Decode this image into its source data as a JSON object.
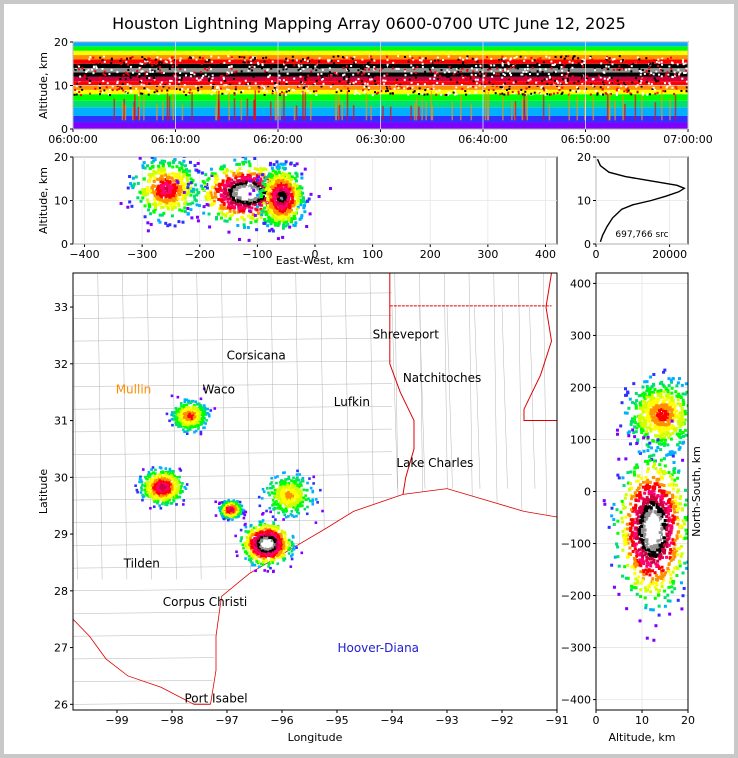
{
  "title": "Houston Lightning Mapping Array 0600-0700 UTC June 12, 2025",
  "colors": {
    "density_scale": [
      "#8000ff",
      "#3030ff",
      "#00b0ff",
      "#00e070",
      "#00ff00",
      "#d0ff00",
      "#ffff00",
      "#ff9000",
      "#ff0000",
      "#ff0070",
      "#d00040",
      "#000000",
      "#909090",
      "#ffffff"
    ],
    "state_border": "#e00000",
    "county_border": "#b4b4b4",
    "city_default": "#000000",
    "city_orange": "#ff8c00",
    "city_blue": "#2020d0"
  },
  "chart_data": [
    {
      "id": "time-height",
      "type": "heatmap",
      "xlabel": "",
      "ylabel": "Altitude, km",
      "x_ticks": [
        "06:00:00",
        "06:10:00",
        "06:20:00",
        "06:30:00",
        "06:40:00",
        "06:50:00",
        "07:00:00"
      ],
      "x_range": [
        "06:00:00",
        "07:00:00"
      ],
      "y_ticks": [
        0,
        10,
        20
      ],
      "y_range": [
        0,
        20
      ],
      "activity_core_altitude_km": [
        10,
        15
      ]
    },
    {
      "id": "east-west-altitude",
      "type": "heatmap",
      "xlabel": "East-West, km",
      "ylabel": "Altitude, km",
      "x_ticks": [
        -400,
        -300,
        -200,
        -100,
        0,
        100,
        200,
        300,
        400
      ],
      "x_range": [
        -420,
        420
      ],
      "y_ticks": [
        0,
        10,
        20
      ],
      "y_range": [
        0,
        20
      ],
      "clusters": [
        {
          "x_center": -260,
          "alt_center": 13,
          "half_width": 60,
          "intensity": 0.65
        },
        {
          "x_center": -120,
          "alt_center": 12,
          "half_width": 90,
          "intensity": 1.0
        },
        {
          "x_center": -60,
          "alt_center": 11,
          "half_width": 40,
          "intensity": 0.8
        }
      ]
    },
    {
      "id": "altitude-histogram",
      "type": "line",
      "xlabel": "",
      "ylabel": "",
      "x_ticks": [
        0,
        20000
      ],
      "x_range": [
        0,
        25000
      ],
      "y_ticks": [
        0,
        10,
        20
      ],
      "y_range": [
        0,
        20
      ],
      "annotation": "697,766 src",
      "points": [
        {
          "alt": 0.5,
          "count": 1200
        },
        {
          "alt": 2,
          "count": 1800
        },
        {
          "alt": 4,
          "count": 3000
        },
        {
          "alt": 6,
          "count": 4500
        },
        {
          "alt": 8,
          "count": 7000
        },
        {
          "alt": 9,
          "count": 10000
        },
        {
          "alt": 10,
          "count": 15000
        },
        {
          "alt": 11,
          "count": 19000
        },
        {
          "alt": 12,
          "count": 22500
        },
        {
          "alt": 12.8,
          "count": 24000
        },
        {
          "alt": 13.5,
          "count": 22000
        },
        {
          "alt": 14.5,
          "count": 15000
        },
        {
          "alt": 15.5,
          "count": 8000
        },
        {
          "alt": 16.5,
          "count": 3500
        },
        {
          "alt": 18,
          "count": 1200
        },
        {
          "alt": 19.5,
          "count": 400
        }
      ]
    },
    {
      "id": "plan-view-map",
      "type": "scatter",
      "xlabel": "Longitude",
      "ylabel": "Latitude",
      "x_ticks": [
        -99,
        -98,
        -97,
        -96,
        -95,
        -94,
        -93,
        -92,
        -91
      ],
      "x_range": [
        -99.8,
        -91
      ],
      "y_ticks": [
        26,
        27,
        28,
        29,
        30,
        31,
        32,
        33
      ],
      "y_range": [
        25.9,
        33.6
      ],
      "cities": [
        {
          "name": "Shreveport",
          "lon": -93.75,
          "lat": 32.52,
          "color": "black"
        },
        {
          "name": "Corsicana",
          "lon": -96.47,
          "lat": 32.15,
          "color": "black"
        },
        {
          "name": "Natchitoches",
          "lon": -93.09,
          "lat": 31.75,
          "color": "black"
        },
        {
          "name": "Mullin",
          "lon": -98.7,
          "lat": 31.55,
          "color": "orange"
        },
        {
          "name": "Waco",
          "lon": -97.15,
          "lat": 31.55,
          "color": "black"
        },
        {
          "name": "Lufkin",
          "lon": -94.73,
          "lat": 31.33,
          "color": "black"
        },
        {
          "name": "Lake Charles",
          "lon": -93.22,
          "lat": 30.25,
          "color": "black"
        },
        {
          "name": "Tilden",
          "lon": -98.55,
          "lat": 28.48,
          "color": "black"
        },
        {
          "name": "Corpus Christi",
          "lon": -97.4,
          "lat": 27.8,
          "color": "black"
        },
        {
          "name": "Hoover-Diana",
          "lon": -94.25,
          "lat": 26.99,
          "color": "blue"
        },
        {
          "name": "Port Isabel",
          "lon": -97.2,
          "lat": 26.1,
          "color": "black"
        }
      ],
      "clusters": [
        {
          "lon": -97.7,
          "lat": 31.1,
          "spread": 0.25,
          "intensity": 0.55
        },
        {
          "lon": -98.2,
          "lat": 29.85,
          "spread": 0.3,
          "intensity": 0.7
        },
        {
          "lon": -96.95,
          "lat": 29.45,
          "spread": 0.15,
          "intensity": 0.7
        },
        {
          "lon": -96.3,
          "lat": 28.85,
          "spread": 0.35,
          "intensity": 1.0
        },
        {
          "lon": -95.9,
          "lat": 29.7,
          "spread": 0.35,
          "intensity": 0.45
        }
      ]
    },
    {
      "id": "north-south-altitude",
      "type": "heatmap",
      "xlabel": "Altitude, km",
      "ylabel": "North-South, km",
      "x_ticks": [
        0,
        10,
        20
      ],
      "x_range": [
        0,
        20
      ],
      "y_ticks": [
        -400,
        -300,
        -200,
        -100,
        0,
        100,
        200,
        300,
        400
      ],
      "y_range": [
        -420,
        420
      ],
      "clusters": [
        {
          "ns_center": 150,
          "alt_center": 14,
          "half_width": 70,
          "intensity": 0.55
        },
        {
          "ns_center": -70,
          "alt_center": 12,
          "half_width": 140,
          "intensity": 1.0
        }
      ]
    }
  ]
}
